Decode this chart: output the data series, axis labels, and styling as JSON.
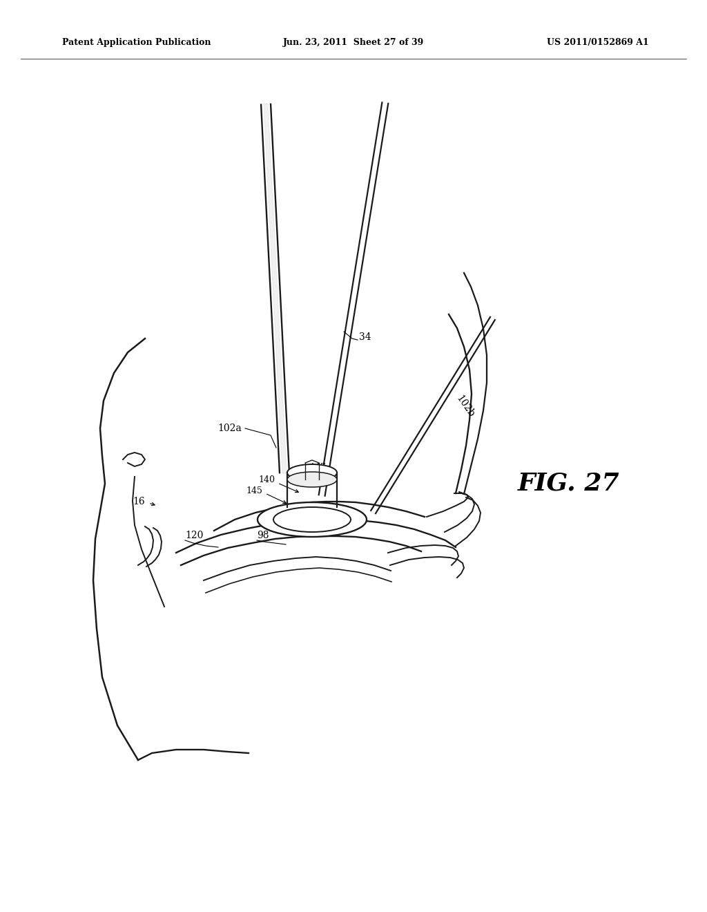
{
  "background_color": "#ffffff",
  "header_left": "Patent Application Publication",
  "header_mid": "Jun. 23, 2011  Sheet 27 of 39",
  "header_right": "US 2011/0152869 A1",
  "fig_label": "FIG. 27",
  "line_color": "#1a1a1a",
  "line_width": 1.4,
  "label_fontsize": 10,
  "header_fontsize": 9
}
